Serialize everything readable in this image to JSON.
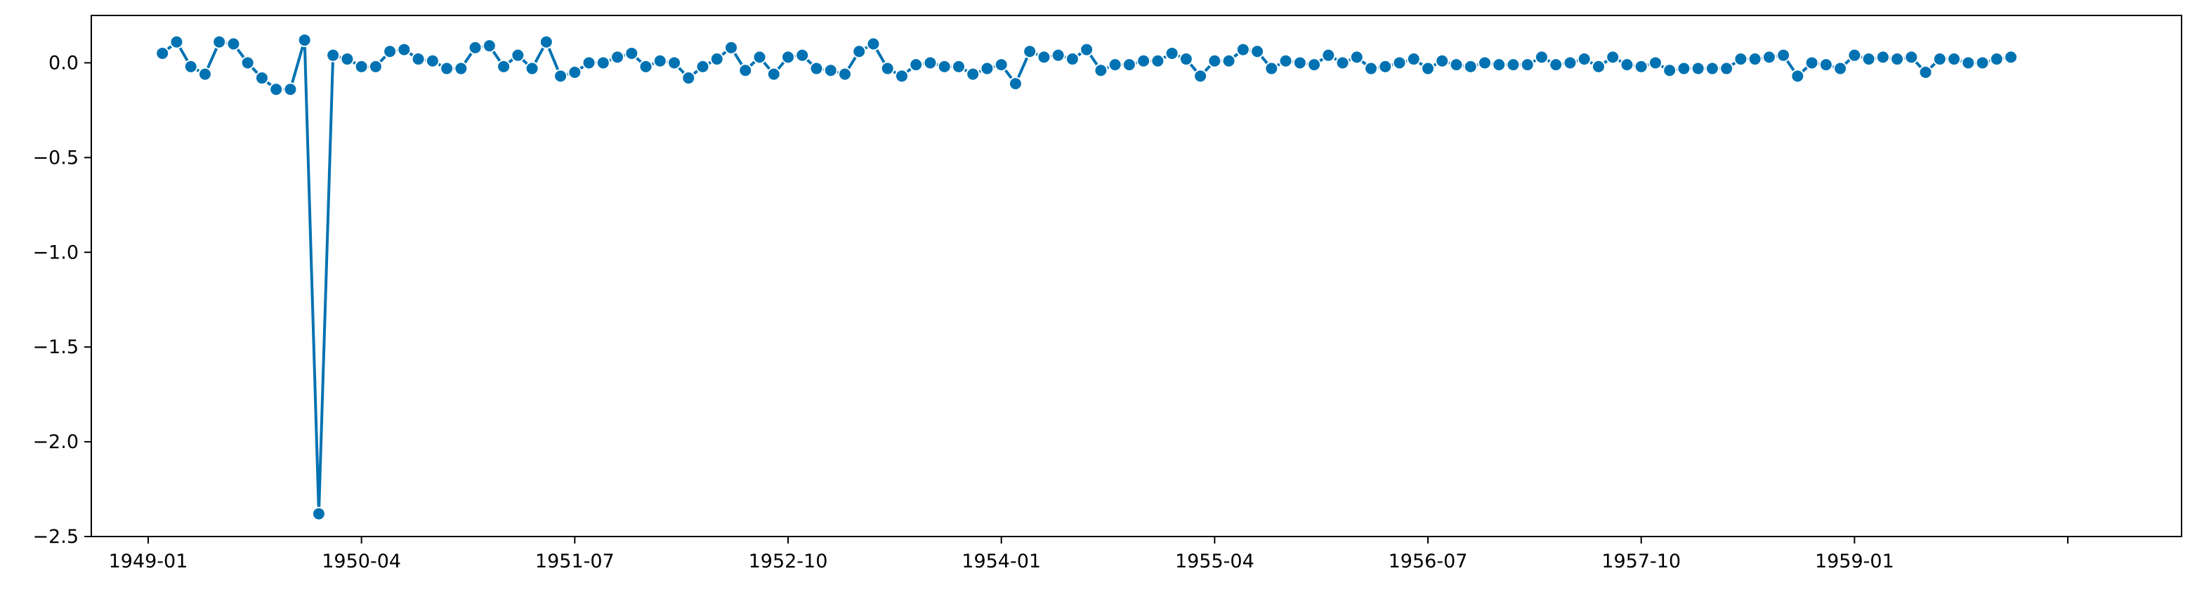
{
  "chart_data": {
    "type": "line",
    "title": "",
    "xlabel": "",
    "ylabel": "",
    "x_unit": "month",
    "x_start": "1949-02",
    "xlim": [
      "1948-09",
      "1960-12"
    ],
    "ylim": [
      -2.5,
      0.25
    ],
    "grid": false,
    "x_ticks": [
      "1949-01",
      "1950-04",
      "1951-07",
      "1952-10",
      "1954-01",
      "1955-04",
      "1956-07",
      "1957-10",
      "1959-01",
      "1960-04"
    ],
    "x_tick_labels": [
      "1949-01",
      "1950-04",
      "1951-07",
      "1952-10",
      "1954-01",
      "1955-04",
      "1956-07",
      "1957-10",
      "1959-01",
      ""
    ],
    "y_ticks": [
      0.0,
      -0.5,
      -1.0,
      -1.5,
      -2.0,
      -2.5
    ],
    "y_tick_labels": [
      "0.0",
      "−0.5",
      "−1.0",
      "−1.5",
      "−2.0",
      "−2.5"
    ],
    "series": [
      {
        "color": "#0072b2",
        "marker": "circle",
        "values": [
          0.05,
          0.11,
          -0.02,
          -0.06,
          0.11,
          0.1,
          0.0,
          -0.08,
          -0.14,
          -0.14,
          0.12,
          -2.38,
          0.04,
          0.02,
          -0.02,
          -0.02,
          0.06,
          0.07,
          0.02,
          0.01,
          -0.03,
          -0.03,
          0.08,
          0.09,
          -0.02,
          0.04,
          -0.03,
          0.11,
          -0.07,
          -0.05,
          0.0,
          0.0,
          0.03,
          0.05,
          -0.02,
          0.01,
          0.0,
          -0.08,
          -0.02,
          0.02,
          0.08,
          -0.04,
          0.03,
          -0.06,
          0.03,
          0.04,
          -0.03,
          -0.04,
          -0.06,
          0.06,
          0.1,
          -0.03,
          -0.07,
          -0.01,
          0.0,
          -0.02,
          -0.02,
          -0.06,
          -0.03,
          -0.01,
          -0.11,
          0.06,
          0.03,
          0.04,
          0.02,
          0.07,
          -0.04,
          -0.01,
          -0.01,
          0.01,
          0.01,
          0.05,
          0.02,
          -0.07,
          0.01,
          0.01,
          0.07,
          0.06,
          -0.03,
          0.01,
          0.0,
          -0.01,
          0.04,
          0.0,
          0.03,
          -0.03,
          -0.02,
          0.0,
          0.02,
          -0.03,
          0.01,
          -0.01,
          -0.02,
          0.0,
          -0.01,
          -0.01,
          -0.01,
          0.03,
          -0.01,
          0.0,
          0.02,
          -0.02,
          0.03,
          -0.01,
          -0.02,
          0.0,
          -0.04,
          -0.03,
          -0.03,
          -0.03,
          -0.03,
          0.02,
          0.02,
          0.03,
          0.04,
          -0.07,
          0.0,
          -0.01,
          -0.03,
          0.04,
          0.02,
          0.03,
          0.02,
          0.03,
          -0.05,
          0.02,
          0.02,
          0.0,
          0.0,
          0.02,
          0.03
        ]
      }
    ]
  }
}
